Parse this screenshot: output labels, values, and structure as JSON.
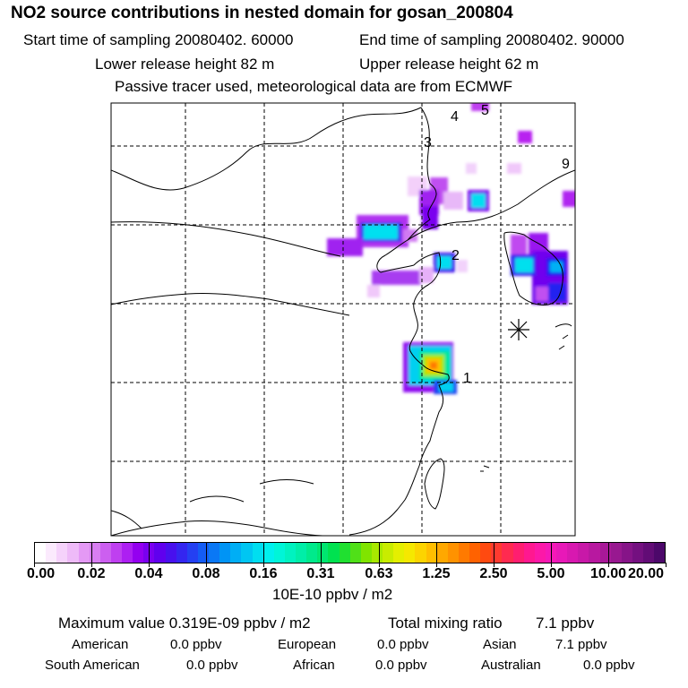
{
  "title": "NO2 source contributions in nested domain for gosan_200804",
  "sampling": {
    "start": "Start time of sampling 20080402. 60000",
    "end": "End time of sampling 20080402. 90000"
  },
  "release": {
    "lower": "Lower release height   82 m",
    "upper": "Upper release height   62 m"
  },
  "tracer_note": "Passive tracer used, meteorological data are from ECMWF",
  "map": {
    "source_labels": [
      "1",
      "2",
      "3",
      "4",
      "5",
      "9"
    ],
    "receptor": "star-marker-icon"
  },
  "colorbar": {
    "tick_labels": [
      "0.00",
      "0.02",
      "0.04",
      "0.08",
      "0.16",
      "0.31",
      "0.63",
      "1.25",
      "2.50",
      "5.00",
      "10.00",
      "20.00"
    ],
    "colors": [
      "#ffffff",
      "#fbeafd",
      "#f5d2fb",
      "#eebaf8",
      "#e499f5",
      "#d87ef2",
      "#cc5ff0",
      "#bf3ff0",
      "#ad1ff2",
      "#9400f0",
      "#7a00ef",
      "#6000ee",
      "#4810ee",
      "#3426f0",
      "#2440f2",
      "#145cf5",
      "#0a78f5",
      "#0094f5",
      "#00aef5",
      "#00c6f2",
      "#00def0",
      "#00f0ee",
      "#00f5d8",
      "#00f2c0",
      "#00eea8",
      "#00ea8c",
      "#00e670",
      "#00e250",
      "#20e030",
      "#50e018",
      "#80e400",
      "#a8e800",
      "#c8ec00",
      "#e4ef00",
      "#f5e800",
      "#fcd400",
      "#ffbe00",
      "#ffa800",
      "#ff9200",
      "#ff7a00",
      "#ff6200",
      "#ff4a10",
      "#ff3a30",
      "#ff2a50",
      "#ff1e70",
      "#ff1890",
      "#fc18a8",
      "#f518b8",
      "#e818b8",
      "#d818b0",
      "#c818a8",
      "#b818a0",
      "#a81898",
      "#981890",
      "#861488",
      "#741080",
      "#620c76",
      "#4c086a"
    ],
    "units": "10E-10 ppbv / m2"
  },
  "stats": {
    "max": "Maximum value  0.319E-09 ppbv / m2",
    "total_label": "Total mixing ratio",
    "total_value": "7.1 ppbv",
    "regions": [
      {
        "name": "American",
        "value": "0.0 ppbv"
      },
      {
        "name": "European",
        "value": "0.0 ppbv"
      },
      {
        "name": "Asian",
        "value": "7.1 ppbv"
      },
      {
        "name": "South American",
        "value": "0.0 ppbv"
      },
      {
        "name": "African",
        "value": "0.0 ppbv"
      },
      {
        "name": "Australian",
        "value": "0.0 ppbv"
      }
    ]
  }
}
